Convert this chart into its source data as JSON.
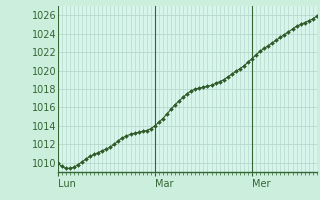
{
  "bg_color": "#cceedd",
  "plot_bg_color": "#d8f5ec",
  "grid_color": "#b8d8cc",
  "line_color": "#2d5a27",
  "marker_color": "#2d5a27",
  "spine_color": "#336633",
  "tick_color": "#336633",
  "label_color": "#336633",
  "ylim": [
    1009.0,
    1027.0
  ],
  "yticks": [
    1010,
    1012,
    1014,
    1016,
    1018,
    1020,
    1022,
    1024,
    1026
  ],
  "xtick_labels": [
    "Lun",
    "Mar",
    "Mer"
  ],
  "xtick_positions": [
    0,
    24,
    48
  ],
  "num_points": 65,
  "values": [
    1010.0,
    1009.6,
    1009.4,
    1009.4,
    1009.5,
    1009.8,
    1010.1,
    1010.4,
    1010.7,
    1010.9,
    1011.1,
    1011.3,
    1011.5,
    1011.7,
    1012.0,
    1012.4,
    1012.7,
    1012.9,
    1013.1,
    1013.2,
    1013.3,
    1013.4,
    1013.5,
    1013.7,
    1014.0,
    1014.4,
    1014.8,
    1015.3,
    1015.8,
    1016.3,
    1016.7,
    1017.1,
    1017.5,
    1017.8,
    1018.0,
    1018.1,
    1018.2,
    1018.3,
    1018.4,
    1018.6,
    1018.8,
    1019.0,
    1019.3,
    1019.6,
    1019.9,
    1020.2,
    1020.5,
    1020.9,
    1021.3,
    1021.7,
    1022.1,
    1022.4,
    1022.7,
    1023.0,
    1023.3,
    1023.6,
    1023.9,
    1024.2,
    1024.5,
    1024.8,
    1025.0,
    1025.2,
    1025.4,
    1025.6,
    1025.9
  ],
  "tick_fontsize": 7,
  "figsize": [
    3.2,
    2.0
  ],
  "dpi": 100
}
